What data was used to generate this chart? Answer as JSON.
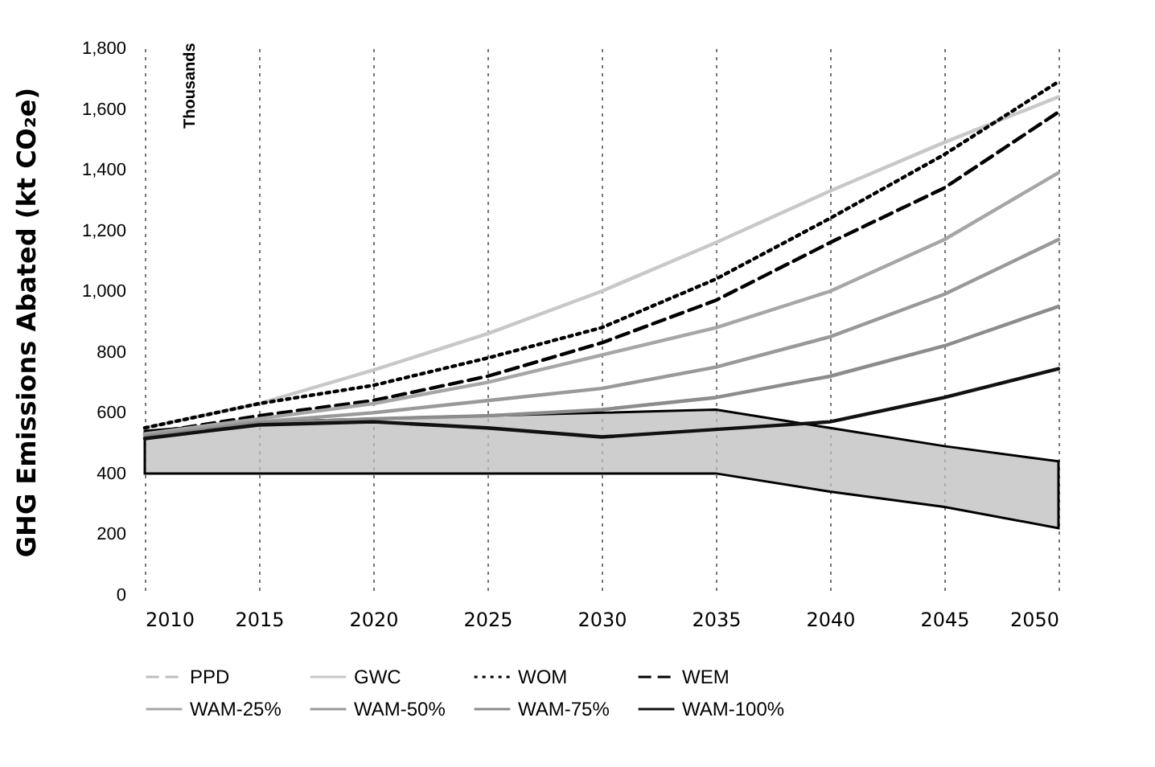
{
  "chart_data": {
    "type": "line",
    "ylabel": "GHG Emissions Abated (kt CO₂e)",
    "annotations": [
      "Thousands"
    ],
    "x": [
      2010,
      2015,
      2020,
      2025,
      2030,
      2035,
      2040,
      2045,
      2050
    ],
    "xlim": [
      2010,
      2050
    ],
    "xticks": [
      2010,
      2015,
      2020,
      2025,
      2030,
      2035,
      2040,
      2045,
      2050
    ],
    "ylim": [
      0,
      1800
    ],
    "yticks": [
      0,
      200,
      400,
      600,
      800,
      {
        "value": 1000,
        "label": "1,000"
      },
      {
        "value": 1200,
        "label": "1,200"
      },
      {
        "value": 1400,
        "label": "1,400"
      },
      {
        "value": 1600,
        "label": "1,600"
      },
      {
        "value": 1800,
        "label": "1,800"
      }
    ],
    "grid": "x",
    "legend": "bottom",
    "marker": "none",
    "series": [
      {
        "name": "PPD",
        "color": "#bdbdbd",
        "line_style": "dashed",
        "values": [
          null,
          null,
          null,
          null,
          null,
          null,
          null,
          null,
          null
        ],
        "upper": [
          540,
          570,
          580,
          590,
          600,
          610,
          550,
          490,
          440
        ],
        "lower": [
          400,
          400,
          400,
          400,
          400,
          400,
          340,
          290,
          220
        ]
      },
      {
        "name": "GWC",
        "color": "#c8c8c8",
        "line_style": "solid",
        "values": [
          550,
          630,
          740,
          860,
          1000,
          1160,
          1330,
          1490,
          1640
        ]
      },
      {
        "name": "WOM",
        "color": "#000000",
        "line_style": "dotted",
        "values": [
          550,
          630,
          690,
          780,
          880,
          1040,
          1240,
          1450,
          1690
        ]
      },
      {
        "name": "WEM",
        "color": "#000000",
        "line_style": "dashed",
        "values": [
          530,
          590,
          640,
          720,
          830,
          970,
          1160,
          1340,
          1590
        ]
      },
      {
        "name": "WAM-25%",
        "color": "#a6a6a6",
        "line_style": "solid",
        "values": [
          530,
          580,
          630,
          700,
          790,
          880,
          1000,
          1170,
          1390
        ]
      },
      {
        "name": "WAM-50%",
        "color": "#999999",
        "line_style": "solid",
        "values": [
          525,
          570,
          600,
          640,
          680,
          750,
          850,
          990,
          1170
        ]
      },
      {
        "name": "WAM-75%",
        "color": "#8c8c8c",
        "line_style": "solid",
        "values": [
          520,
          565,
          580,
          590,
          610,
          650,
          720,
          820,
          950
        ]
      },
      {
        "name": "WAM-100%",
        "color": "#111111",
        "line_style": "solid",
        "values": [
          515,
          560,
          570,
          550,
          520,
          545,
          570,
          650,
          745
        ]
      }
    ]
  }
}
